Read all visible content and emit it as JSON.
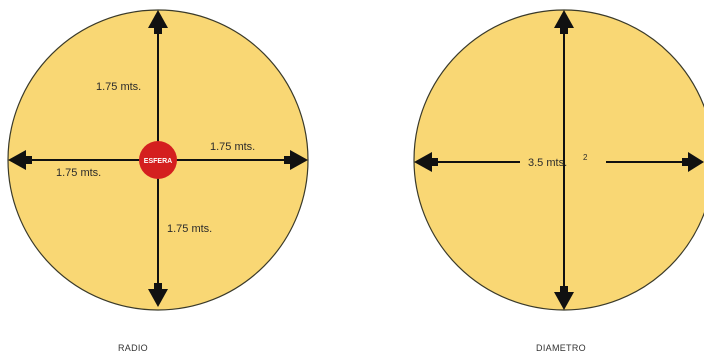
{
  "diagrams": {
    "radio": {
      "caption": "RADIO",
      "center_label": "ESFERA",
      "label_top": "1.75 mts.",
      "label_right": "1.75 mts.",
      "label_left": "1.75 mts.",
      "label_bottom": "1.75 mts."
    },
    "diametro": {
      "caption": "DIAMETRO",
      "label_center": "3.5 mts.",
      "label_sup": "2"
    }
  },
  "colors": {
    "circle_fill": "#f9d774",
    "circle_stroke": "#3a3a2a",
    "arrow": "#111111",
    "center_dot": "#d41f1f"
  }
}
